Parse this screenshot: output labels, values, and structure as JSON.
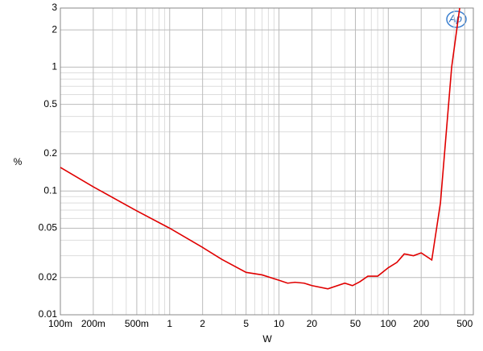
{
  "chart_data": {
    "type": "line",
    "logo": "Ap",
    "ylabel": "%",
    "xlabel": "W",
    "log_x": true,
    "log_y": true,
    "grid": true,
    "xlim": [
      0.1,
      600
    ],
    "ylim": [
      0.01,
      3
    ],
    "xticks": [
      {
        "value": 0.1,
        "label": "100m"
      },
      {
        "value": 0.2,
        "label": "200m"
      },
      {
        "value": 0.5,
        "label": "500m"
      },
      1,
      2,
      5,
      10,
      20,
      50,
      100,
      200,
      500
    ],
    "yticks": [
      0.01,
      0.02,
      0.05,
      0.1,
      0.2,
      0.5,
      1,
      2,
      3
    ],
    "x_minor_ticks": [
      0.3,
      0.4,
      0.6,
      0.7,
      0.8,
      0.9,
      3,
      4,
      6,
      7,
      8,
      9,
      30,
      40,
      60,
      70,
      80,
      90,
      300,
      400
    ],
    "y_minor_ticks": [
      0.03,
      0.04,
      0.06,
      0.07,
      0.08,
      0.09,
      0.3,
      0.4,
      0.6,
      0.7,
      0.8,
      0.9
    ],
    "x": [
      0.1,
      0.2,
      0.5,
      1,
      2,
      3,
      5,
      7,
      10,
      12,
      14,
      17,
      20,
      28,
      40,
      47,
      55,
      65,
      80,
      100,
      120,
      140,
      170,
      200,
      250,
      300,
      380,
      450
    ],
    "series": [
      {
        "color": "#e00000",
        "values": [
          0.155,
          0.108,
          0.069,
          0.05,
          0.035,
          0.028,
          0.022,
          0.021,
          0.019,
          0.018,
          0.0183,
          0.018,
          0.0172,
          0.0162,
          0.018,
          0.0172,
          0.0185,
          0.0205,
          0.0205,
          0.024,
          0.0265,
          0.031,
          0.03,
          0.0316,
          0.0277,
          0.08,
          1.0,
          3.0
        ]
      }
    ]
  }
}
